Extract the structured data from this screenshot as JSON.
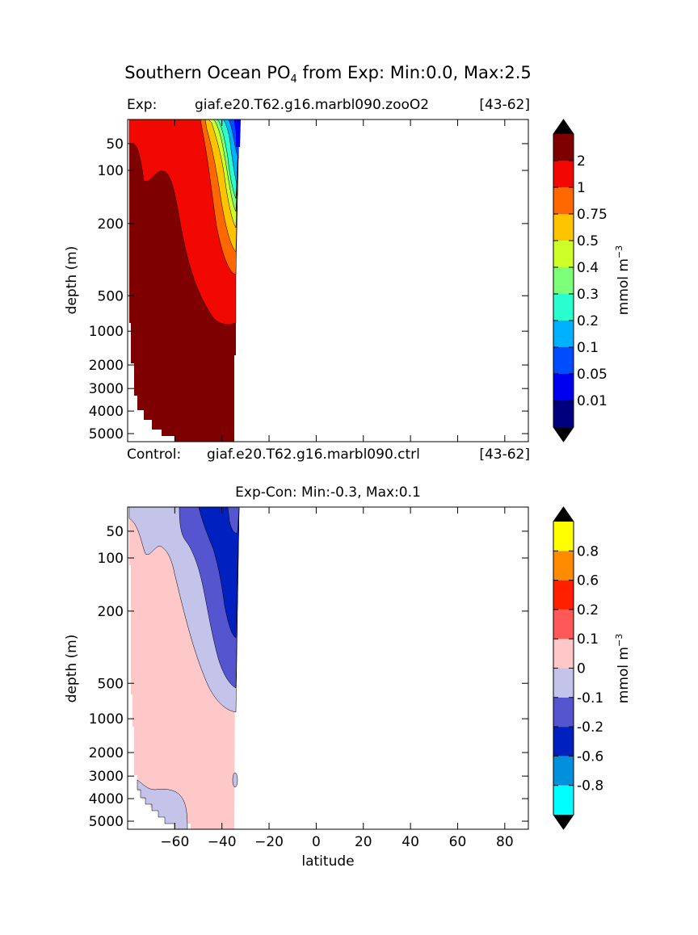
{
  "title": {
    "prefix": "Southern Ocean PO",
    "subscript": "4",
    "suffix": " from Exp: Min:0.0, Max:2.5"
  },
  "top_panel": {
    "exp_label": "Exp:",
    "exp_case": "giaf.e20.T62.g16.marbl090.zooO2",
    "exp_years": "[43-62]",
    "ylabel": "depth (m)"
  },
  "control_line": {
    "label": "Control:",
    "case": "giaf.e20.T62.g16.marbl090.ctrl",
    "years": "[43-62]"
  },
  "bottom_panel": {
    "title": "Exp-Con: Min:-0.3, Max:0.1",
    "ylabel": "depth (m)",
    "xlabel": "latitude"
  },
  "colorbar_top": {
    "unit_label": "mmol m",
    "unit_exp": "−3",
    "tick_labels": [
      "0.01",
      "0.05",
      "0.1",
      "0.2",
      "0.3",
      "0.4",
      "0.5",
      "0.75",
      "1",
      "2"
    ],
    "colors": [
      "#00007f",
      "#0000f1",
      "#004dff",
      "#00b1ff",
      "#29ffce",
      "#7dff7a",
      "#ceff29",
      "#ffc400",
      "#ff6700",
      "#f10800",
      "#7f0000"
    ],
    "extend_min_color": "#000000",
    "extend_max_color": "#000000"
  },
  "colorbar_bottom": {
    "unit_label": "mmol m",
    "unit_exp": "−3",
    "tick_labels": [
      "-0.8",
      "-0.6",
      "-0.2",
      "-0.1",
      "0",
      "0.1",
      "0.2",
      "0.6",
      "0.8"
    ],
    "colors": [
      "#00ffff",
      "#0090dc",
      "#0020c0",
      "#5555d0",
      "#c4c4ea",
      "#ffc8c8",
      "#ff5858",
      "#ff2000",
      "#ff8c00",
      "#ffff00"
    ],
    "extend_min_color": "#000000",
    "extend_max_color": "#000000"
  },
  "chart_data": [
    {
      "type": "heatmap",
      "panel": "Exp PO4",
      "title": "Southern Ocean PO4 from Exp: Min:0.0, Max:2.5",
      "xlabel": "latitude",
      "ylabel": "depth (m)",
      "xlim": [
        -80,
        90
      ],
      "ylim": [
        5500,
        10
      ],
      "yticks": [
        50,
        100,
        200,
        500,
        1000,
        2000,
        3000,
        4000,
        5000
      ],
      "levels": [
        0.01,
        0.05,
        0.1,
        0.2,
        0.3,
        0.4,
        0.5,
        0.75,
        1,
        2
      ],
      "data_extent_lat": [
        -78,
        -34
      ],
      "contours": [
        {
          "level": 2,
          "boundary": [
            [
              -76,
              10
            ],
            [
              -76,
              50
            ],
            [
              -74,
              100
            ],
            [
              -67,
              100
            ],
            [
              -62,
              200
            ],
            [
              -55,
              500
            ],
            [
              -44,
              800
            ],
            [
              -34,
              800
            ]
          ]
        },
        {
          "level": 1,
          "boundary": [
            [
              -50,
              10
            ],
            [
              -46,
              100
            ],
            [
              -42,
              200
            ],
            [
              -36,
              250
            ],
            [
              -34,
              330
            ]
          ]
        },
        {
          "level": 0.5,
          "boundary": [
            [
              -46,
              10
            ],
            [
              -42,
              80
            ],
            [
              -37,
              180
            ],
            [
              -34,
              240
            ]
          ]
        },
        {
          "level": 0.1,
          "boundary": [
            [
              -40,
              10
            ],
            [
              -36,
              50
            ],
            [
              -34,
              100
            ]
          ]
        }
      ]
    },
    {
      "type": "heatmap",
      "panel": "Exp-Con",
      "title": "Exp-Con: Min:-0.3, Max:0.1",
      "xlabel": "latitude",
      "ylabel": "depth (m)",
      "xlim": [
        -80,
        90
      ],
      "xticks": [
        -60,
        -40,
        -20,
        0,
        20,
        40,
        60,
        80
      ],
      "ylim": [
        5500,
        10
      ],
      "yticks": [
        50,
        100,
        200,
        500,
        1000,
        2000,
        3000,
        4000,
        5000
      ],
      "levels": [
        -0.8,
        -0.6,
        -0.2,
        -0.1,
        0,
        0.1,
        0.2,
        0.6,
        0.8
      ],
      "data_extent_lat": [
        -78,
        -34
      ],
      "contours": [
        {
          "level": 0,
          "boundary": [
            [
              -78,
              20
            ],
            [
              -76,
              50
            ],
            [
              -73,
              100
            ],
            [
              -64,
              150
            ],
            [
              -55,
              400
            ],
            [
              -44,
              700
            ],
            [
              -34,
              800
            ]
          ]
        },
        {
          "level": -0.1,
          "boundary": [
            [
              -62,
              10
            ],
            [
              -60,
              100
            ],
            [
              -52,
              200
            ],
            [
              -44,
              400
            ],
            [
              -34,
              600
            ]
          ]
        },
        {
          "level": -0.2,
          "boundary": [
            [
              -56,
              10
            ],
            [
              -52,
              50
            ],
            [
              -46,
              130
            ],
            [
              -34,
              200
            ]
          ]
        },
        {
          "level": 0,
          "note": "deep negative patch",
          "boundary": [
            [
              -78,
              3000
            ],
            [
              -70,
              3500
            ],
            [
              -60,
              4000
            ],
            [
              -55,
              5500
            ]
          ]
        }
      ]
    }
  ]
}
